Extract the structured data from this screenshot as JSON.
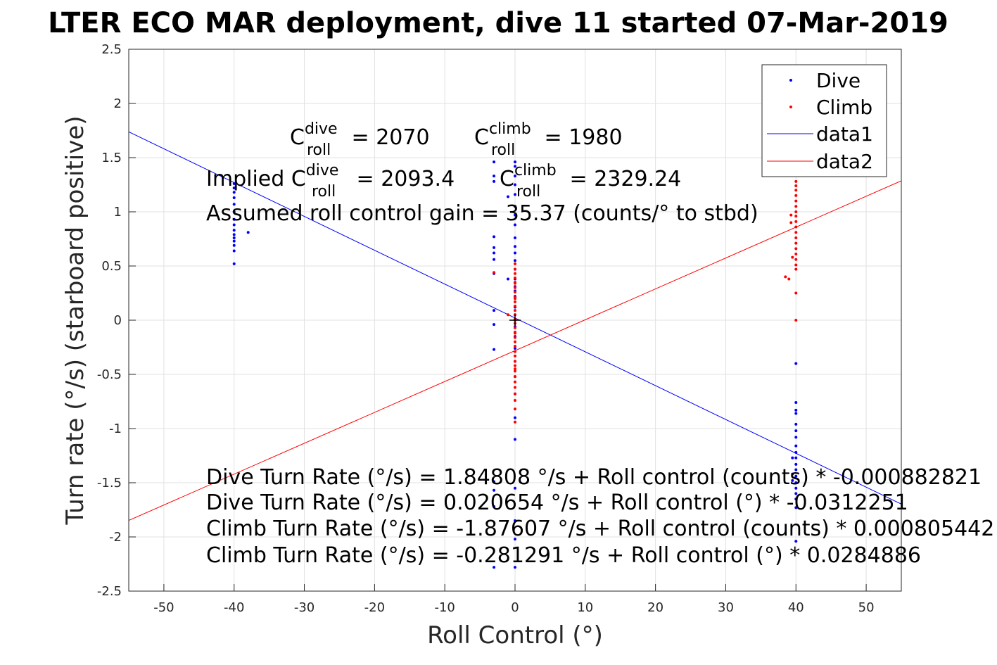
{
  "chart_data": {
    "type": "scatter",
    "title": "LTER ECO MAR deployment, dive 11 started 07-Mar-2019",
    "xlabel": "Roll Control (°)",
    "ylabel": "Turn rate (°/s) (starboard positive)",
    "xlim": [
      -55,
      55
    ],
    "ylim": [
      -2.5,
      2.5
    ],
    "xticks": [
      "-50",
      "-40",
      "-30",
      "-20",
      "-10",
      "0",
      "10",
      "20",
      "30",
      "40",
      "50"
    ],
    "yticks": [
      "-2.5",
      "-2",
      "-1.5",
      "-1",
      "-0.5",
      "0",
      "0.5",
      "1",
      "1.5",
      "2",
      "2.5"
    ],
    "grid": true,
    "legend_position": "top-right",
    "colors": {
      "dive": "#0000ff",
      "climb": "#ff0000",
      "axes": "#262626",
      "grid": "#e1e1e1"
    },
    "series": [
      {
        "name": "Dive",
        "kind": "points",
        "color": "#0000ff",
        "points": [
          [
            -40,
            1.26
          ],
          [
            -40,
            1.22
          ],
          [
            -40,
            1.18
          ],
          [
            -40,
            1.13
          ],
          [
            -40,
            1.07
          ],
          [
            -40,
            1.0
          ],
          [
            -40,
            0.93
          ],
          [
            -40,
            0.88
          ],
          [
            -40,
            0.83
          ],
          [
            -40,
            0.79
          ],
          [
            -40,
            0.76
          ],
          [
            -40,
            0.73
          ],
          [
            -40,
            0.69
          ],
          [
            -40,
            0.64
          ],
          [
            -40,
            0.52
          ],
          [
            -38,
            0.81
          ],
          [
            0,
            1.46
          ],
          [
            0,
            1.42
          ],
          [
            0,
            1.33
          ],
          [
            0,
            1.25
          ],
          [
            0,
            1.16
          ],
          [
            0,
            1.05
          ],
          [
            0,
            0.97
          ],
          [
            0,
            0.88
          ],
          [
            0,
            0.76
          ],
          [
            0,
            0.68
          ],
          [
            0,
            0.62
          ],
          [
            0,
            0.55
          ],
          [
            0,
            0.47
          ],
          [
            0,
            0.38
          ],
          [
            0,
            0.31
          ],
          [
            0,
            0.27
          ],
          [
            0,
            0.22
          ],
          [
            0,
            0.12
          ],
          [
            0,
            0.05
          ],
          [
            0,
            0.0
          ],
          [
            0,
            -0.06
          ],
          [
            0,
            -0.15
          ],
          [
            0,
            -0.26
          ],
          [
            0,
            -0.38
          ],
          [
            0,
            -0.52
          ],
          [
            0,
            -0.68
          ],
          [
            0,
            -0.9
          ],
          [
            0,
            -1.1
          ],
          [
            0,
            -1.55
          ],
          [
            0,
            -1.85
          ],
          [
            0,
            -2.02
          ],
          [
            0,
            -2.28
          ],
          [
            -3,
            1.46
          ],
          [
            -3,
            1.33
          ],
          [
            -3,
            1.28
          ],
          [
            -3,
            0.77
          ],
          [
            -3,
            0.67
          ],
          [
            -3,
            0.62
          ],
          [
            -3,
            0.56
          ],
          [
            -3,
            0.43
          ],
          [
            -3,
            0.09
          ],
          [
            -3,
            -0.04
          ],
          [
            -3,
            -0.27
          ],
          [
            -3,
            -1.49
          ],
          [
            -3,
            -1.57
          ],
          [
            -3,
            -1.72
          ],
          [
            -3,
            -2.28
          ],
          [
            -1,
            1.14
          ],
          [
            -1,
            0.38
          ],
          [
            40,
            -0.4
          ],
          [
            40,
            -0.76
          ],
          [
            40,
            -0.83
          ],
          [
            40,
            -0.86
          ],
          [
            40,
            -0.96
          ],
          [
            40,
            -1.02
          ],
          [
            40,
            -1.08
          ],
          [
            40,
            -1.16
          ],
          [
            40,
            -1.22
          ],
          [
            40,
            -1.27
          ],
          [
            40,
            -1.33
          ],
          [
            40,
            -1.38
          ],
          [
            40,
            -1.44
          ],
          [
            40,
            -1.5
          ],
          [
            40,
            -1.55
          ],
          [
            40,
            -1.6
          ],
          [
            40,
            -1.65
          ],
          [
            40,
            -1.73
          ],
          [
            40,
            -2.04
          ],
          [
            39.5,
            -1.42
          ],
          [
            39.5,
            -1.48
          ],
          [
            39.5,
            -1.27
          ]
        ]
      },
      {
        "name": "Climb",
        "kind": "points",
        "color": "#ff0000",
        "points": [
          [
            0,
            0.52
          ],
          [
            0,
            0.47
          ],
          [
            0,
            0.43
          ],
          [
            0,
            0.39
          ],
          [
            0,
            0.35
          ],
          [
            0,
            0.3
          ],
          [
            0,
            0.26
          ],
          [
            0,
            0.21
          ],
          [
            0,
            0.17
          ],
          [
            0,
            0.13
          ],
          [
            0,
            0.09
          ],
          [
            0,
            0.05
          ],
          [
            0,
            0.01
          ],
          [
            0,
            -0.03
          ],
          [
            0,
            -0.07
          ],
          [
            0,
            -0.11
          ],
          [
            0,
            -0.16
          ],
          [
            0,
            -0.2
          ],
          [
            0,
            -0.24
          ],
          [
            0,
            -0.29
          ],
          [
            0,
            -0.33
          ],
          [
            0,
            -0.38
          ],
          [
            0,
            -0.42
          ],
          [
            0,
            -0.47
          ],
          [
            0,
            -0.52
          ],
          [
            0,
            -0.57
          ],
          [
            0,
            -0.62
          ],
          [
            0,
            -0.68
          ],
          [
            0,
            -0.74
          ],
          [
            0,
            -0.82
          ],
          [
            0,
            -0.94
          ],
          [
            0,
            0.0
          ],
          [
            0,
            0.34
          ],
          [
            0,
            0.2
          ],
          [
            0,
            -0.12
          ],
          [
            0,
            -0.45
          ],
          [
            -3,
            0.44
          ],
          [
            -1,
            0.05
          ],
          [
            40,
            1.28
          ],
          [
            40,
            1.24
          ],
          [
            40,
            1.2
          ],
          [
            40,
            1.15
          ],
          [
            40,
            1.1
          ],
          [
            40,
            1.05
          ],
          [
            40,
            1.0
          ],
          [
            40,
            0.96
          ],
          [
            40,
            0.91
          ],
          [
            40,
            0.86
          ],
          [
            40,
            0.81
          ],
          [
            40,
            0.76
          ],
          [
            40,
            0.71
          ],
          [
            40,
            0.66
          ],
          [
            40,
            0.61
          ],
          [
            40,
            0.56
          ],
          [
            40,
            0.51
          ],
          [
            40,
            0.47
          ],
          [
            40,
            0.25
          ],
          [
            40,
            0.0
          ],
          [
            39.3,
            0.97
          ],
          [
            39.3,
            0.9
          ],
          [
            39.5,
            0.58
          ],
          [
            39,
            0.38
          ],
          [
            38.5,
            0.4
          ]
        ]
      },
      {
        "name": "data1",
        "kind": "line",
        "color": "#0000ff",
        "x": [
          -55,
          55
        ],
        "y": [
          1.738,
          -1.697
        ]
      },
      {
        "name": "data2",
        "kind": "line",
        "color": "#ff0000",
        "x": [
          -55,
          55
        ],
        "y": [
          -1.848,
          1.286
        ]
      }
    ],
    "annotations": {
      "c_roll_dive": {
        "prefix": "C",
        "sup": "dive",
        "sub": "roll",
        "suffix": " = 2070"
      },
      "c_roll_climb": {
        "prefix": "C",
        "sup": "climb",
        "sub": "roll",
        "suffix": " = 1980"
      },
      "implied_dive": {
        "prefix": "Implied C",
        "sup": "dive",
        "sub": "roll",
        "suffix": " = 2093.4"
      },
      "implied_climb": {
        "prefix": "C",
        "sup": "climb",
        "sub": "roll",
        "suffix": " = 2329.24"
      },
      "gain": "Assumed roll control gain = 35.37 (counts/° to stbd)",
      "eq1": "Dive Turn Rate (°/s) = 1.84808 °/s + Roll control (counts) * -0.000882821",
      "eq2": "Dive Turn Rate (°/s) = 0.020654 °/s + Roll control (°) * -0.0312251",
      "eq3": "Climb Turn Rate (°/s) = -1.87607 °/s + Roll control (counts) * 0.000805442",
      "eq4": "Climb Turn Rate (°/s) = -0.281291 °/s + Roll control (°) * 0.0284886"
    }
  }
}
